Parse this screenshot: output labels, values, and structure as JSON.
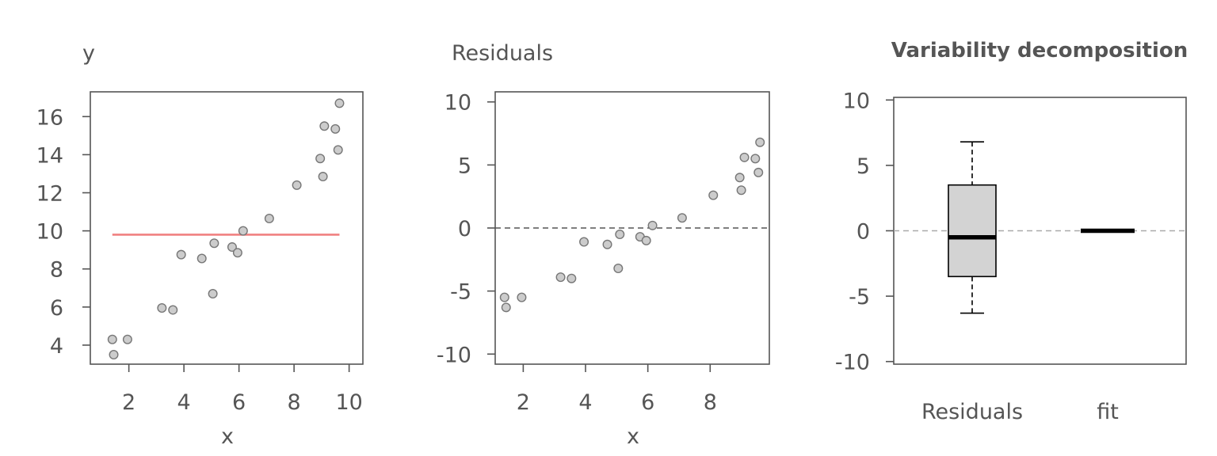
{
  "chart_data": [
    {
      "type": "scatter",
      "ylabel": "y",
      "xlabel": "x",
      "xlim": [
        0.6,
        10.5
      ],
      "ylim": [
        3.0,
        17.3
      ],
      "xticks": [
        "2",
        "4",
        "6",
        "8",
        "10"
      ],
      "yticks": [
        "4",
        "6",
        "8",
        "10",
        "12",
        "14",
        "16"
      ],
      "points": {
        "x": [
          1.4,
          1.45,
          1.95,
          3.2,
          3.6,
          3.9,
          4.65,
          5.05,
          5.1,
          5.75,
          5.95,
          6.15,
          7.1,
          8.1,
          8.95,
          9.05,
          9.1,
          9.5,
          9.6,
          9.65
        ],
        "y": [
          4.3,
          3.5,
          4.3,
          5.95,
          5.85,
          8.75,
          8.55,
          6.7,
          9.35,
          9.15,
          8.85,
          10.0,
          10.65,
          12.4,
          13.8,
          12.85,
          15.5,
          15.35,
          14.25,
          16.7
        ]
      },
      "mean_line": {
        "x": [
          1.4,
          9.65
        ],
        "y": 9.8,
        "color": "#f08080"
      }
    },
    {
      "type": "scatter",
      "ylabel": "Residuals",
      "xlabel": "x",
      "xlim": [
        1.1,
        9.9
      ],
      "ylim": [
        -10.8,
        10.8
      ],
      "xticks": [
        "2",
        "4",
        "6",
        "8"
      ],
      "yticks": [
        "-10",
        "-5",
        "0",
        "5",
        "10"
      ],
      "zero_line": 0,
      "points": {
        "x": [
          1.4,
          1.45,
          1.95,
          3.2,
          3.55,
          3.95,
          4.7,
          5.05,
          5.1,
          5.75,
          5.95,
          6.15,
          7.1,
          8.1,
          8.95,
          9.0,
          9.1,
          9.45,
          9.55,
          9.6
        ],
        "y": [
          -5.5,
          -6.3,
          -5.5,
          -3.9,
          -4.0,
          -1.1,
          -1.3,
          -3.2,
          -0.5,
          -0.7,
          -1.0,
          0.2,
          0.8,
          2.6,
          4.0,
          3.0,
          5.6,
          5.5,
          4.4,
          6.8
        ]
      }
    },
    {
      "type": "box",
      "title": "Variability decomposition",
      "ylim": [
        -10.2,
        10.2
      ],
      "yticks": [
        "-10",
        "-5",
        "0",
        "5",
        "10"
      ],
      "zero_line": 0,
      "categories": [
        "Residuals",
        "fit"
      ],
      "boxes": [
        {
          "name": "Residuals",
          "whisker_low": -6.3,
          "q1": -3.5,
          "median": -0.5,
          "q3": 3.5,
          "whisker_high": 6.8
        },
        {
          "name": "fit",
          "whisker_low": 0,
          "q1": 0,
          "median": 0,
          "q3": 0,
          "whisker_high": 0
        }
      ]
    }
  ]
}
